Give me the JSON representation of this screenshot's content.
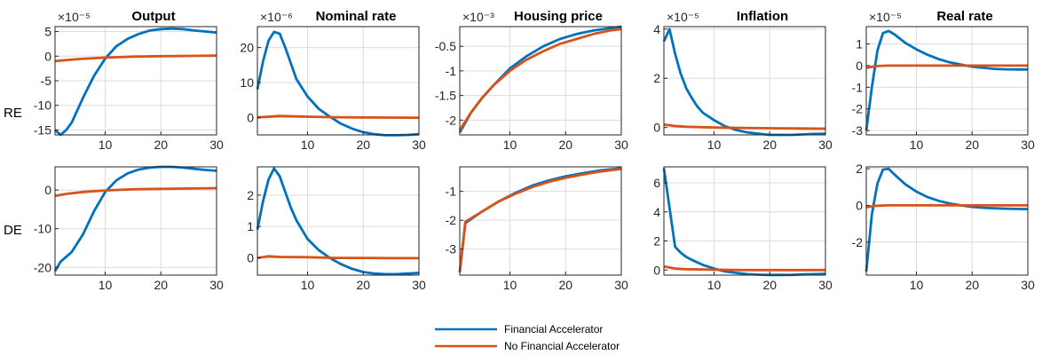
{
  "colors": {
    "fa": "#0072BD",
    "nofa": "#D95319",
    "grid": "#dcdcdc",
    "axis": "#262626"
  },
  "row_labels": [
    "RE",
    "DE"
  ],
  "legend": {
    "fa": "Financial Accelerator",
    "nofa": "No Financial Accelerator"
  },
  "chart_data": [
    {
      "type": "line",
      "row": "RE",
      "title": "Output",
      "exponent": "×10⁻⁵",
      "xlim": [
        1,
        30
      ],
      "ylim": [
        -16,
        6
      ],
      "xticks": [
        "10",
        "20",
        "30"
      ],
      "xtick_values": [
        10,
        20,
        30
      ],
      "yticks": [
        "5",
        "0",
        "-5",
        "-10",
        "-15"
      ],
      "ytick_values": [
        5,
        0,
        -5,
        -10,
        -15
      ],
      "series": [
        {
          "name": "Financial Accelerator",
          "x": [
            1,
            2,
            3,
            4,
            5,
            6,
            8,
            10,
            12,
            14,
            16,
            18,
            20,
            22,
            24,
            26,
            28,
            30
          ],
          "y": [
            -15,
            -16,
            -15,
            -13.5,
            -11,
            -8.5,
            -4,
            -0.5,
            2,
            3.5,
            4.5,
            5.2,
            5.5,
            5.6,
            5.5,
            5.2,
            5,
            4.8
          ]
        },
        {
          "name": "No Financial Accelerator",
          "x": [
            1,
            5,
            10,
            15,
            20,
            25,
            30
          ],
          "y": [
            -1,
            -0.6,
            -0.3,
            -0.1,
            0,
            0.05,
            0.1
          ]
        }
      ]
    },
    {
      "type": "line",
      "row": "RE",
      "title": "Nominal rate",
      "exponent": "×10⁻⁶",
      "xlim": [
        1,
        30
      ],
      "ylim": [
        -5,
        26
      ],
      "xticks": [
        "10",
        "20",
        "30"
      ],
      "xtick_values": [
        10,
        20,
        30
      ],
      "yticks": [
        "20",
        "10",
        "0"
      ],
      "ytick_values": [
        20,
        10,
        0
      ],
      "series": [
        {
          "name": "Financial Accelerator",
          "x": [
            1,
            2,
            3,
            4,
            5,
            6,
            7,
            8,
            10,
            12,
            14,
            16,
            18,
            20,
            22,
            24,
            26,
            28,
            30
          ],
          "y": [
            8,
            16,
            22,
            24.5,
            24,
            20,
            15.5,
            11,
            6,
            2.5,
            0.2,
            -1.8,
            -3.2,
            -4.2,
            -4.8,
            -5.1,
            -5.1,
            -5,
            -4.8
          ]
        },
        {
          "name": "No Financial Accelerator",
          "x": [
            1,
            5,
            10,
            15,
            20,
            25,
            30
          ],
          "y": [
            0,
            0.4,
            0.2,
            0.05,
            0,
            -0.05,
            -0.1
          ]
        }
      ]
    },
    {
      "type": "line",
      "row": "RE",
      "title": "Housing price",
      "exponent": "×10⁻³",
      "xlim": [
        1,
        30
      ],
      "ylim": [
        -2.3,
        -0.1
      ],
      "xticks": [
        "10",
        "20",
        "30"
      ],
      "xtick_values": [
        10,
        20,
        30
      ],
      "yticks": [
        "-0.5",
        "-1",
        "-1.5",
        "-2"
      ],
      "ytick_values": [
        -0.5,
        -1,
        -1.5,
        -2
      ],
      "series": [
        {
          "name": "Financial Accelerator",
          "x": [
            1,
            3,
            5,
            7,
            10,
            13,
            16,
            19,
            22,
            25,
            28,
            30
          ],
          "y": [
            -2.25,
            -1.85,
            -1.55,
            -1.3,
            -0.95,
            -0.7,
            -0.5,
            -0.35,
            -0.25,
            -0.18,
            -0.13,
            -0.1
          ]
        },
        {
          "name": "No Financial Accelerator",
          "x": [
            1,
            3,
            5,
            7,
            10,
            13,
            16,
            19,
            22,
            25,
            28,
            30
          ],
          "y": [
            -2.2,
            -1.85,
            -1.55,
            -1.3,
            -1,
            -0.77,
            -0.6,
            -0.45,
            -0.35,
            -0.25,
            -0.18,
            -0.15
          ]
        }
      ]
    },
    {
      "type": "line",
      "row": "RE",
      "title": "Inflation",
      "exponent": "×10⁻⁵",
      "xlim": [
        1,
        30
      ],
      "ylim": [
        -0.3,
        4.1
      ],
      "xticks": [
        "10",
        "20",
        "30"
      ],
      "xtick_values": [
        10,
        20,
        30
      ],
      "yticks": [
        "4",
        "2",
        "0"
      ],
      "ytick_values": [
        4,
        2,
        0
      ],
      "series": [
        {
          "name": "Financial Accelerator",
          "x": [
            1,
            2,
            3,
            4,
            5,
            6,
            7,
            8,
            10,
            12,
            14,
            16,
            18,
            20,
            22,
            24,
            26,
            28,
            30
          ],
          "y": [
            3.5,
            4,
            3,
            2.2,
            1.6,
            1.2,
            0.85,
            0.6,
            0.3,
            0.05,
            -0.1,
            -0.2,
            -0.25,
            -0.3,
            -0.3,
            -0.3,
            -0.28,
            -0.26,
            -0.25
          ]
        },
        {
          "name": "No Financial Accelerator",
          "x": [
            1,
            3,
            5,
            10,
            15,
            20,
            25,
            30
          ],
          "y": [
            0.12,
            0.06,
            0.03,
            0,
            -0.02,
            -0.03,
            -0.04,
            -0.05
          ]
        }
      ]
    },
    {
      "type": "line",
      "row": "RE",
      "title": "Real rate",
      "exponent": "×10⁻⁵",
      "xlim": [
        1,
        30
      ],
      "ylim": [
        -3.2,
        1.8
      ],
      "xticks": [
        "10",
        "20",
        "30"
      ],
      "xtick_values": [
        10,
        20,
        30
      ],
      "yticks": [
        "1",
        "0",
        "-1",
        "-2",
        "-3"
      ],
      "ytick_values": [
        1,
        0,
        -1,
        -2,
        -3
      ],
      "series": [
        {
          "name": "Financial Accelerator",
          "x": [
            1,
            2,
            3,
            4,
            5,
            6,
            7,
            8,
            10,
            12,
            14,
            16,
            18,
            20,
            22,
            24,
            26,
            28,
            30
          ],
          "y": [
            -3,
            -1,
            0.7,
            1.5,
            1.6,
            1.45,
            1.25,
            1.05,
            0.75,
            0.5,
            0.3,
            0.15,
            0.05,
            -0.05,
            -0.1,
            -0.15,
            -0.17,
            -0.18,
            -0.18
          ]
        },
        {
          "name": "No Financial Accelerator",
          "x": [
            1,
            3,
            5,
            10,
            20,
            30
          ],
          "y": [
            -0.1,
            -0.02,
            0,
            0,
            0,
            0
          ]
        }
      ]
    },
    {
      "type": "line",
      "row": "DE",
      "title": "",
      "exponent": "",
      "xlim": [
        1,
        30
      ],
      "ylim": [
        -22,
        6
      ],
      "xticks": [
        "10",
        "20",
        "30"
      ],
      "xtick_values": [
        10,
        20,
        30
      ],
      "yticks": [
        "0",
        "-10",
        "-20"
      ],
      "ytick_values": [
        0,
        -10,
        -20
      ],
      "series": [
        {
          "name": "Financial Accelerator",
          "x": [
            1,
            2,
            4,
            6,
            8,
            10,
            12,
            14,
            16,
            18,
            20,
            22,
            24,
            26,
            28,
            30
          ],
          "y": [
            -21,
            -18.5,
            -16,
            -11.5,
            -5.5,
            -0.5,
            2.5,
            4.3,
            5.3,
            5.8,
            6,
            6,
            5.8,
            5.5,
            5.2,
            5
          ]
        },
        {
          "name": "No Financial Accelerator",
          "x": [
            1,
            3,
            6,
            10,
            15,
            20,
            25,
            30
          ],
          "y": [
            -1.5,
            -1,
            -0.5,
            -0.1,
            0.2,
            0.3,
            0.4,
            0.5
          ]
        }
      ]
    },
    {
      "type": "line",
      "row": "DE",
      "title": "",
      "exponent": "",
      "xlim": [
        1,
        30
      ],
      "ylim": [
        -0.55,
        2.9
      ],
      "xticks": [
        "10",
        "20",
        "30"
      ],
      "xtick_values": [
        10,
        20,
        30
      ],
      "yticks": [
        "2",
        "1",
        "0"
      ],
      "ytick_values": [
        2,
        1,
        0
      ],
      "series": [
        {
          "name": "Financial Accelerator",
          "x": [
            1,
            2,
            3,
            4,
            5,
            6,
            7,
            8,
            10,
            12,
            14,
            16,
            18,
            20,
            22,
            24,
            26,
            28,
            30
          ],
          "y": [
            0.9,
            1.8,
            2.5,
            2.85,
            2.6,
            2.1,
            1.6,
            1.2,
            0.6,
            0.25,
            0,
            -0.2,
            -0.35,
            -0.45,
            -0.5,
            -0.52,
            -0.52,
            -0.5,
            -0.48
          ]
        },
        {
          "name": "No Financial Accelerator",
          "x": [
            1,
            3,
            5,
            10,
            15,
            20,
            25,
            30
          ],
          "y": [
            0,
            0.05,
            0.03,
            0.02,
            0,
            0,
            -0.01,
            -0.01
          ]
        }
      ]
    },
    {
      "type": "line",
      "row": "DE",
      "title": "",
      "exponent": "",
      "xlim": [
        1,
        30
      ],
      "ylim": [
        -3.9,
        -0.15
      ],
      "xticks": [
        "10",
        "20",
        "30"
      ],
      "xtick_values": [
        10,
        20,
        30
      ],
      "yticks": [
        "-1",
        "-2",
        "-3"
      ],
      "ytick_values": [
        -1,
        -2,
        -3
      ],
      "series": [
        {
          "name": "Financial Accelerator",
          "x": [
            1,
            2,
            5,
            8,
            11,
            14,
            17,
            20,
            23,
            26,
            30
          ],
          "y": [
            -3.8,
            -2.1,
            -1.7,
            -1.35,
            -1.05,
            -0.8,
            -0.62,
            -0.48,
            -0.37,
            -0.28,
            -0.2
          ]
        },
        {
          "name": "No Financial Accelerator",
          "x": [
            1,
            2,
            5,
            8,
            11,
            14,
            17,
            20,
            23,
            26,
            30
          ],
          "y": [
            -3.8,
            -2.05,
            -1.7,
            -1.35,
            -1.08,
            -0.85,
            -0.67,
            -0.53,
            -0.42,
            -0.32,
            -0.22
          ]
        }
      ]
    },
    {
      "type": "line",
      "row": "DE",
      "title": "",
      "exponent": "",
      "xlim": [
        1,
        30
      ],
      "ylim": [
        -0.35,
        7.1
      ],
      "xticks": [
        "10",
        "20",
        "30"
      ],
      "xtick_values": [
        10,
        20,
        30
      ],
      "yticks": [
        "6",
        "4",
        "2",
        "0"
      ],
      "ytick_values": [
        6,
        4,
        2,
        0
      ],
      "series": [
        {
          "name": "Financial Accelerator",
          "x": [
            1,
            2,
            3,
            4,
            5,
            6,
            8,
            10,
            12,
            14,
            16,
            18,
            20,
            22,
            24,
            26,
            28,
            30
          ],
          "y": [
            7,
            4.3,
            1.6,
            1.2,
            0.9,
            0.7,
            0.35,
            0.1,
            -0.1,
            -0.2,
            -0.28,
            -0.32,
            -0.34,
            -0.34,
            -0.33,
            -0.3,
            -0.28,
            -0.26
          ]
        },
        {
          "name": "No Financial Accelerator",
          "x": [
            1,
            3,
            5,
            10,
            15,
            20,
            25,
            30
          ],
          "y": [
            0.25,
            0.1,
            0.06,
            0.02,
            0,
            0,
            0,
            0
          ]
        }
      ]
    },
    {
      "type": "line",
      "row": "DE",
      "title": "",
      "exponent": "",
      "xlim": [
        1,
        30
      ],
      "ylim": [
        -3.8,
        2.1
      ],
      "xticks": [
        "10",
        "20",
        "30"
      ],
      "xtick_values": [
        10,
        20,
        30
      ],
      "yticks": [
        "2",
        "0",
        "-2"
      ],
      "ytick_values": [
        2,
        0,
        -2
      ],
      "series": [
        {
          "name": "Financial Accelerator",
          "x": [
            1,
            2,
            3,
            4,
            5,
            6,
            8,
            10,
            12,
            14,
            16,
            18,
            20,
            22,
            24,
            26,
            28,
            30
          ],
          "y": [
            -3.6,
            -0.5,
            1.2,
            1.95,
            2,
            1.7,
            1.15,
            0.75,
            0.45,
            0.25,
            0.1,
            0,
            -0.08,
            -0.13,
            -0.16,
            -0.18,
            -0.19,
            -0.2
          ]
        },
        {
          "name": "No Financial Accelerator",
          "x": [
            1,
            3,
            5,
            10,
            20,
            30
          ],
          "y": [
            -0.1,
            -0.02,
            0,
            0,
            0,
            0
          ]
        }
      ]
    }
  ]
}
